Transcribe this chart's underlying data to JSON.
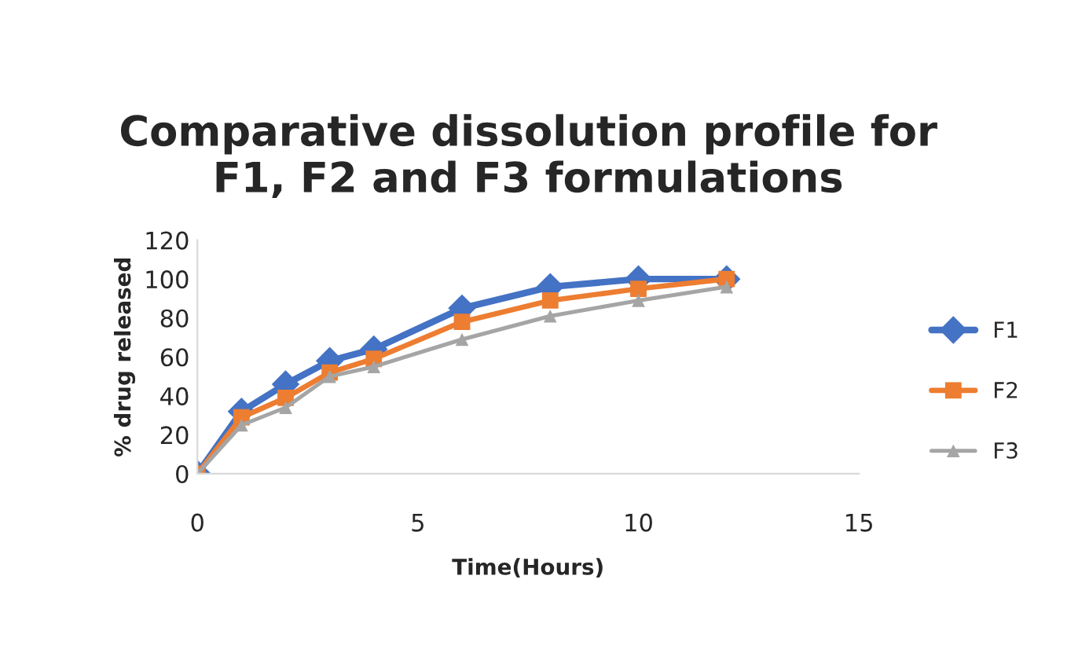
{
  "chart_data": {
    "type": "line",
    "title": "Comparative dissolution profile for\nF1, F2 and F3 formulations",
    "xlabel": "Time(Hours)",
    "ylabel": "% drug released",
    "x": [
      0,
      1,
      2,
      3,
      4,
      6,
      8,
      10,
      12
    ],
    "series": [
      {
        "name": "F1",
        "color": "#4472c4",
        "marker": "diamond",
        "values": [
          0,
          32,
          46,
          58,
          64,
          85,
          96,
          100,
          100
        ]
      },
      {
        "name": "F2",
        "color": "#ed7d31",
        "marker": "square",
        "values": [
          0,
          29,
          39,
          52,
          59,
          78,
          89,
          95,
          100
        ]
      },
      {
        "name": "F3",
        "color": "#a5a5a5",
        "marker": "triangle",
        "values": [
          0,
          25,
          34,
          50,
          55,
          69,
          81,
          89,
          96
        ]
      }
    ],
    "xlim": [
      0,
      15
    ],
    "xticks": [
      0,
      5,
      10,
      15
    ],
    "ylim": [
      0,
      120
    ],
    "yticks": [
      0,
      20,
      40,
      60,
      80,
      100,
      120
    ],
    "grid": false,
    "legend": "right",
    "line_style": "solid"
  }
}
